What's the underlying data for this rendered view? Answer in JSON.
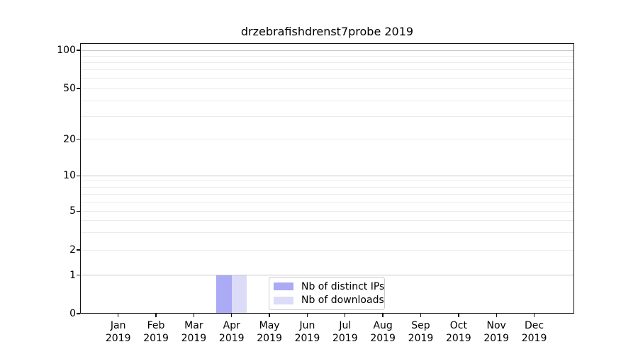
{
  "title": "drzebrafishdrenst7probe 2019",
  "legend": {
    "items": [
      {
        "label": "Nb of distinct IPs",
        "color": "#aaaaf5"
      },
      {
        "label": "Nb of downloads",
        "color": "#dcdcf8"
      }
    ]
  },
  "colors": {
    "bar_distinct_ips": "#aaaaf5",
    "bar_downloads": "#dcdcf8",
    "grid_major": "#c6c6c6",
    "grid_minor": "#ebebeb",
    "axis": "#111111"
  },
  "chart_data": {
    "type": "bar",
    "title": "drzebrafishdrenst7probe 2019",
    "categories": [
      "Jan",
      "Feb",
      "Mar",
      "Apr",
      "May",
      "Jun",
      "Jul",
      "Aug",
      "Sep",
      "Oct",
      "Nov",
      "Dec"
    ],
    "year": "2019",
    "series": [
      {
        "name": "Nb of distinct IPs",
        "color": "#aaaaf5",
        "values": [
          0,
          0,
          0,
          1,
          0,
          0,
          0,
          0,
          0,
          0,
          0,
          0
        ]
      },
      {
        "name": "Nb of downloads",
        "color": "#dcdcf8",
        "values": [
          0,
          0,
          0,
          1,
          0,
          0,
          0,
          0,
          0,
          0,
          0,
          0
        ]
      }
    ],
    "xlabel": "",
    "ylabel": "",
    "yscale": "symlog",
    "y_ticks": [
      0,
      1,
      2,
      5,
      10,
      20,
      50,
      100
    ],
    "ylim": [
      0,
      112
    ],
    "grid": "horizontal",
    "legend_position": "lower center"
  }
}
